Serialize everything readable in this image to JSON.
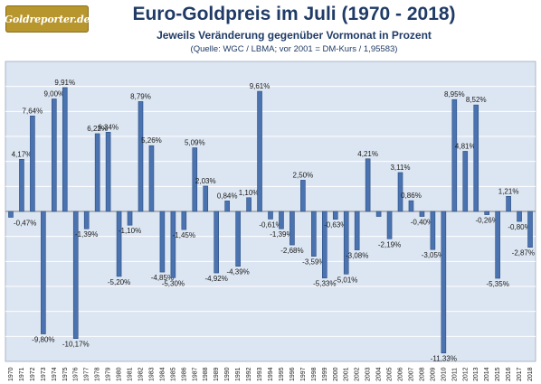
{
  "logo_text": "Goldreporter.de",
  "colors": {
    "bar": "#4a73b0",
    "bar_dark": "#2b4d82",
    "plot_bg": "#dce6f2",
    "grid": "#ffffff",
    "title": "#1f3b66"
  },
  "chart_data": {
    "type": "bar",
    "title": "Euro-Goldpreis im Juli (1970 - 2018)",
    "subtitle": "Jeweils Veränderung gegenüber Vormonat in Prozent",
    "note": "(Quelle: WGC / LBMA; vor 2001 = DM-Kurs / 1,95583)",
    "xlabel": "",
    "ylabel": "",
    "ylim": [
      -12,
      12
    ],
    "grid": true,
    "categories": [
      "1970",
      "1971",
      "1972",
      "1973",
      "1974",
      "1975",
      "1976",
      "1977",
      "1978",
      "1979",
      "1980",
      "1981",
      "1982",
      "1983",
      "1984",
      "1985",
      "1986",
      "1987",
      "1988",
      "1989",
      "1990",
      "1991",
      "1992",
      "1993",
      "1994",
      "1995",
      "1996",
      "1997",
      "1998",
      "1999",
      "2000",
      "2001",
      "2002",
      "2003",
      "2004",
      "2005",
      "2006",
      "2007",
      "2008",
      "2009",
      "2010",
      "2011",
      "2012",
      "2013",
      "2014",
      "2015",
      "2016",
      "2017",
      "2018"
    ],
    "values": [
      -0.47,
      4.17,
      7.64,
      -9.8,
      9.0,
      9.91,
      -10.17,
      -1.39,
      6.22,
      6.34,
      -5.2,
      -1.1,
      8.79,
      5.26,
      -4.85,
      -5.3,
      -1.45,
      5.09,
      2.03,
      -4.92,
      0.84,
      -4.39,
      1.1,
      9.61,
      -0.61,
      -1.39,
      -2.68,
      2.5,
      -3.59,
      -5.33,
      -0.63,
      -5.01,
      -3.08,
      4.21,
      -0.4,
      -2.19,
      3.11,
      0.86,
      -0.4,
      -3.05,
      -11.33,
      8.95,
      4.81,
      8.52,
      -0.26,
      -5.35,
      1.21,
      -0.8,
      -2.87
    ],
    "labels": [
      "-0,47%",
      "4,17%",
      "7,64%",
      "-9,80%",
      "9,00%",
      "9,91%",
      "-10,17%",
      "-1,39%",
      "6,22%",
      "6,34%",
      "-5,20%",
      "-1,10%",
      "8,79%",
      "5,26%",
      "-4,85%",
      "-5,30%",
      "-1,45%",
      "5,09%",
      "2,03%",
      "-4,92%",
      "0,84%",
      "-4,39%",
      "1,10%",
      "9,61%",
      "-0,61%",
      "-1,39%",
      "-2,68%",
      "2,50%",
      "-3,59%",
      "-5,33%",
      "-0,63%",
      "-5,01%",
      "-3,08%",
      "4,21%",
      "",
      "-2,19%",
      "3,11%",
      "0,86%",
      "-0,40%",
      "-3,05%",
      "-11,33%",
      "8,95%",
      "4,81%",
      "8,52%",
      "-0,26%",
      "-5,35%",
      "1,21%",
      "-0,80%",
      "-2,87%"
    ]
  }
}
